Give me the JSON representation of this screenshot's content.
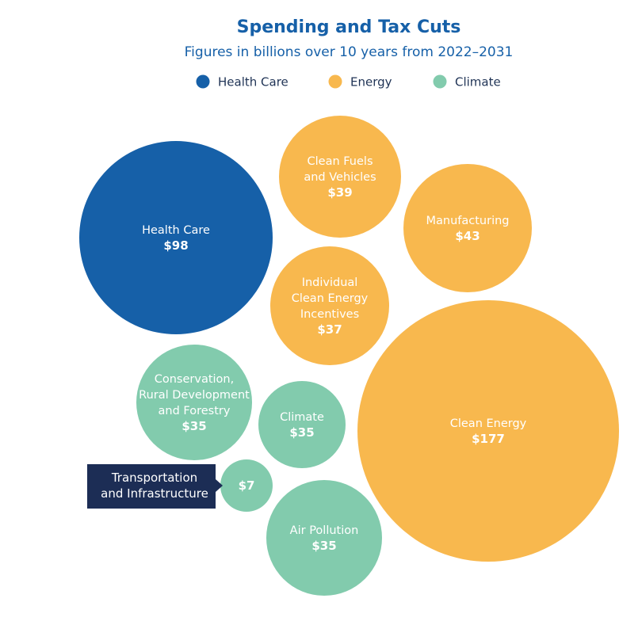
{
  "chart_data": {
    "type": "bubble",
    "title": "Spending and Tax Cuts",
    "subtitle": "Figures in billions over 10 years from 2022–2031",
    "legend_position": "top",
    "categories": [
      {
        "name": "Health Care",
        "color": "#1660a8"
      },
      {
        "name": "Energy",
        "color": "#f8b84e"
      },
      {
        "name": "Climate",
        "color": "#82cbad"
      }
    ],
    "bubbles": [
      {
        "id": "health-care",
        "label": [
          "Health Care"
        ],
        "value": 98,
        "value_label": "$98",
        "category": "Health Care"
      },
      {
        "id": "clean-fuels",
        "label": [
          "Clean Fuels",
          "and Vehicles"
        ],
        "value": 39,
        "value_label": "$39",
        "category": "Energy"
      },
      {
        "id": "manufacturing",
        "label": [
          "Manufacturing"
        ],
        "value": 43,
        "value_label": "$43",
        "category": "Energy"
      },
      {
        "id": "individual-clean-energy",
        "label": [
          "Individual",
          "Clean Energy",
          "Incentives"
        ],
        "value": 37,
        "value_label": "$37",
        "category": "Energy"
      },
      {
        "id": "clean-energy",
        "label": [
          "Clean Energy"
        ],
        "value": 177,
        "value_label": "$177",
        "category": "Energy"
      },
      {
        "id": "conservation",
        "label": [
          "Conservation,",
          "Rural Development",
          "and Forestry"
        ],
        "value": 35,
        "value_label": "$35",
        "category": "Climate"
      },
      {
        "id": "climate",
        "label": [
          "Climate"
        ],
        "value": 35,
        "value_label": "$35",
        "category": "Climate"
      },
      {
        "id": "transportation",
        "label": [],
        "callout": [
          "Transportation",
          "and Infrastructure"
        ],
        "value": 7,
        "value_label": "$7",
        "category": "Climate"
      },
      {
        "id": "air-pollution",
        "label": [
          "Air Pollution"
        ],
        "value": 35,
        "value_label": "$35",
        "category": "Climate"
      }
    ]
  }
}
